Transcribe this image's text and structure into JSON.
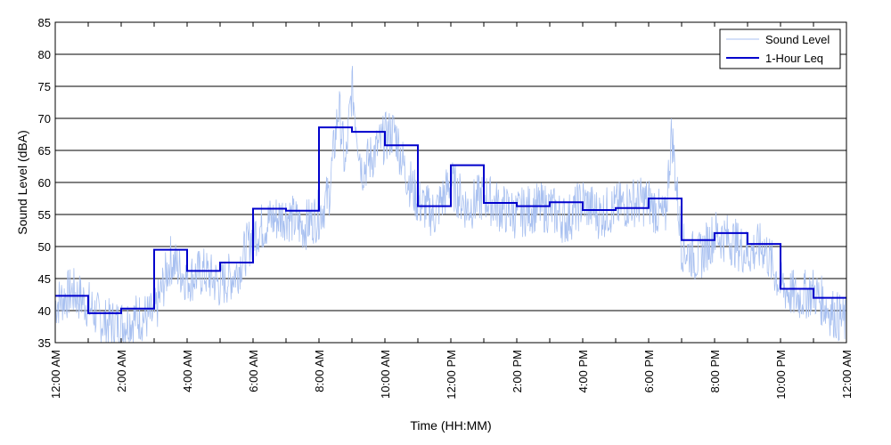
{
  "chart_data": {
    "type": "line",
    "xlabel": "Time (HH:MM)",
    "ylabel": "Sound Level (dBA)",
    "xlim": [
      0,
      24
    ],
    "ylim": [
      35,
      85
    ],
    "x_tick_labels": [
      "12:00 AM",
      "2:00 AM",
      "4:00 AM",
      "6:00 AM",
      "8:00 AM",
      "10:00 AM",
      "12:00 PM",
      "2:00 PM",
      "4:00 PM",
      "6:00 PM",
      "8:00 PM",
      "10:00 PM",
      "12:00 AM"
    ],
    "y_tick_labels": [
      "35",
      "40",
      "45",
      "50",
      "55",
      "60",
      "65",
      "70",
      "75",
      "80",
      "85"
    ],
    "grid": "horizontal",
    "legend_position": "top-right",
    "series": [
      {
        "name": "Sound Level",
        "color": "#a8c0f0",
        "style": "thin-noisy-line",
        "x": [
          0,
          0.5,
          1,
          1.3,
          1.5,
          2,
          2.5,
          3,
          3.5,
          4,
          4.5,
          5,
          5.5,
          6,
          6.5,
          7,
          7.5,
          8,
          8.3,
          8.6,
          8.8,
          9,
          9.3,
          9.6,
          10,
          10.3,
          10.6,
          11,
          11.5,
          12,
          12.5,
          13,
          13.5,
          14,
          14.5,
          15,
          15.5,
          16,
          16.5,
          17,
          17.5,
          18,
          18.5,
          18.7,
          19,
          19.5,
          20,
          20.5,
          21,
          21.5,
          22,
          22.5,
          23,
          23.5,
          24
        ],
        "y": [
          41,
          43,
          41,
          39,
          38,
          38,
          39,
          39,
          48,
          45,
          46,
          44,
          46,
          52,
          54,
          55,
          53,
          55,
          58,
          72,
          62,
          75,
          62,
          64,
          67,
          68,
          62,
          57,
          55,
          60,
          56,
          58,
          56,
          55,
          56,
          56,
          54,
          57,
          55,
          56,
          57,
          57,
          54,
          68,
          50,
          48,
          52,
          51,
          49,
          50,
          44,
          42,
          43,
          40,
          38
        ]
      },
      {
        "name": "1-Hour Leq",
        "color": "#0000cc",
        "style": "step",
        "x": [
          0,
          1,
          2,
          3,
          4,
          5,
          6,
          7,
          8,
          9,
          10,
          11,
          12,
          13,
          14,
          15,
          16,
          17,
          18,
          19,
          20,
          21,
          22,
          23
        ],
        "y": [
          42.3,
          39.6,
          40.3,
          49.5,
          46.2,
          47.5,
          55.9,
          55.6,
          68.6,
          67.9,
          65.8,
          56.3,
          62.7,
          56.8,
          56.3,
          56.9,
          55.7,
          56.0,
          57.5,
          51.0,
          52.1,
          50.4,
          43.4,
          42.0
        ]
      }
    ]
  }
}
